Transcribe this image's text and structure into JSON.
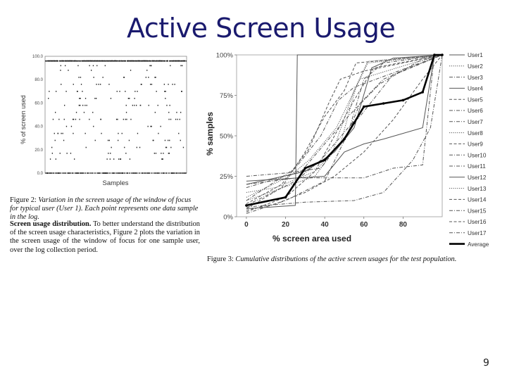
{
  "slide": {
    "title": "Active Screen Usage",
    "page_number": "9"
  },
  "figure2": {
    "caption_label": "Figure 2:",
    "caption_text": "Variation in the screen usage of the window of focus for typical user (User 1). Each point represents one data sample in the log.",
    "chart_data": {
      "type": "scatter",
      "xlabel": "Samples",
      "ylabel": "% of screen used",
      "ylim": [
        0,
        100
      ],
      "y_ticks": [
        "0.0",
        "20.0",
        "40.0",
        "60.0",
        "80.0",
        "100.0"
      ],
      "grid": false,
      "levels": [
        0,
        12,
        17,
        22,
        28,
        34,
        40,
        46,
        52,
        58,
        64,
        70,
        76,
        82,
        88,
        92,
        96
      ]
    }
  },
  "paragraph": {
    "lead": "Screen usage distribution.",
    "text": "To better understand the distribution of the screen usage characteristics, Figure 2 plots the variation in the screen usage of the window of focus for one sample user, over the log collection period."
  },
  "figure3": {
    "caption_label": "Figure 3:",
    "caption_text": "Cumulative distributions of the active screen usages for the test population.",
    "chart_data": {
      "type": "line",
      "xlabel": "% screen area used",
      "ylabel": "% samples",
      "xlim": [
        -5,
        100
      ],
      "ylim": [
        0,
        100
      ],
      "x_ticks": [
        0,
        20,
        40,
        60,
        80
      ],
      "y_ticks": [
        "0%",
        "25%",
        "50%",
        "75%",
        "100%"
      ],
      "legend_position": "right",
      "series": [
        {
          "name": "User1",
          "style": "solid",
          "points": [
            [
              0,
              5
            ],
            [
              25,
              7
            ],
            [
              26,
              100
            ],
            [
              100,
              100
            ]
          ]
        },
        {
          "name": "User2",
          "style": "dotted",
          "points": [
            [
              0,
              15
            ],
            [
              15,
              18
            ],
            [
              35,
              28
            ],
            [
              48,
              45
            ],
            [
              56,
              80
            ],
            [
              62,
              95
            ],
            [
              100,
              100
            ]
          ]
        },
        {
          "name": "User3",
          "style": "dashdot",
          "points": [
            [
              0,
              25
            ],
            [
              20,
              27
            ],
            [
              38,
              30
            ],
            [
              52,
              52
            ],
            [
              60,
              85
            ],
            [
              70,
              95
            ],
            [
              100,
              100
            ]
          ]
        },
        {
          "name": "User4",
          "style": "solid",
          "points": [
            [
              0,
              20
            ],
            [
              30,
              28
            ],
            [
              45,
              40
            ],
            [
              55,
              55
            ],
            [
              64,
              92
            ],
            [
              75,
              98
            ],
            [
              100,
              100
            ]
          ]
        },
        {
          "name": "User5",
          "style": "dashed",
          "points": [
            [
              0,
              8
            ],
            [
              18,
              20
            ],
            [
              32,
              42
            ],
            [
              42,
              70
            ],
            [
              48,
              85
            ],
            [
              60,
              90
            ],
            [
              100,
              100
            ]
          ]
        },
        {
          "name": "User6",
          "style": "dashdot",
          "points": [
            [
              0,
              2
            ],
            [
              20,
              10
            ],
            [
              40,
              22
            ],
            [
              52,
              52
            ],
            [
              58,
              70
            ],
            [
              70,
              85
            ],
            [
              100,
              100
            ]
          ]
        },
        {
          "name": "User7",
          "style": "dashdot",
          "points": [
            [
              0,
              10
            ],
            [
              25,
              30
            ],
            [
              38,
              50
            ],
            [
              47,
              72
            ],
            [
              55,
              80
            ],
            [
              100,
              100
            ]
          ]
        },
        {
          "name": "User8",
          "style": "dotted",
          "points": [
            [
              0,
              12
            ],
            [
              22,
              25
            ],
            [
              32,
              35
            ],
            [
              46,
              55
            ],
            [
              58,
              85
            ],
            [
              85,
              95
            ],
            [
              100,
              100
            ]
          ]
        },
        {
          "name": "User9",
          "style": "dashed",
          "points": [
            [
              0,
              5
            ],
            [
              18,
              18
            ],
            [
              30,
              40
            ],
            [
              40,
              62
            ],
            [
              50,
              78
            ],
            [
              56,
              95
            ],
            [
              100,
              100
            ]
          ]
        },
        {
          "name": "User10",
          "style": "dashdot",
          "points": [
            [
              0,
              18
            ],
            [
              28,
              28
            ],
            [
              40,
              45
            ],
            [
              52,
              62
            ],
            [
              68,
              82
            ],
            [
              88,
              96
            ],
            [
              100,
              100
            ]
          ]
        },
        {
          "name": "User11",
          "style": "dashdot",
          "points": [
            [
              0,
              7
            ],
            [
              25,
              22
            ],
            [
              38,
              35
            ],
            [
              52,
              55
            ],
            [
              58,
              62
            ],
            [
              75,
              88
            ],
            [
              100,
              100
            ]
          ]
        },
        {
          "name": "User12",
          "style": "solid",
          "points": [
            [
              0,
              22
            ],
            [
              40,
              25
            ],
            [
              50,
              40
            ],
            [
              60,
              45
            ],
            [
              70,
              48
            ],
            [
              90,
              55
            ],
            [
              96,
              100
            ],
            [
              100,
              100
            ]
          ]
        },
        {
          "name": "User13",
          "style": "dotted",
          "points": [
            [
              0,
              10
            ],
            [
              35,
              25
            ],
            [
              44,
              40
            ],
            [
              55,
              78
            ],
            [
              62,
              96
            ],
            [
              100,
              100
            ]
          ]
        },
        {
          "name": "User14",
          "style": "dashed",
          "points": [
            [
              0,
              3
            ],
            [
              20,
              12
            ],
            [
              35,
              28
            ],
            [
              45,
              50
            ],
            [
              55,
              72
            ],
            [
              65,
              92
            ],
            [
              100,
              100
            ]
          ]
        },
        {
          "name": "User15",
          "style": "dashdot",
          "points": [
            [
              0,
              20
            ],
            [
              25,
              24
            ],
            [
              60,
              24
            ],
            [
              75,
              30
            ],
            [
              90,
              32
            ],
            [
              96,
              100
            ],
            [
              100,
              100
            ]
          ]
        },
        {
          "name": "User16",
          "style": "dashed",
          "points": [
            [
              0,
              4
            ],
            [
              15,
              8
            ],
            [
              30,
              15
            ],
            [
              45,
              25
            ],
            [
              60,
              40
            ],
            [
              75,
              60
            ],
            [
              90,
              85
            ],
            [
              100,
              100
            ]
          ]
        },
        {
          "name": "User17",
          "style": "dashdot",
          "points": [
            [
              0,
              6
            ],
            [
              30,
              9
            ],
            [
              55,
              10
            ],
            [
              70,
              15
            ],
            [
              85,
              35
            ],
            [
              94,
              55
            ],
            [
              100,
              100
            ]
          ]
        },
        {
          "name": "Average",
          "style": "bold",
          "points": [
            [
              0,
              7
            ],
            [
              20,
              12
            ],
            [
              30,
              30
            ],
            [
              40,
              35
            ],
            [
              50,
              48
            ],
            [
              55,
              58
            ],
            [
              60,
              68
            ],
            [
              70,
              70
            ],
            [
              80,
              72
            ],
            [
              90,
              77
            ],
            [
              96,
              100
            ],
            [
              100,
              100
            ]
          ]
        }
      ]
    }
  }
}
